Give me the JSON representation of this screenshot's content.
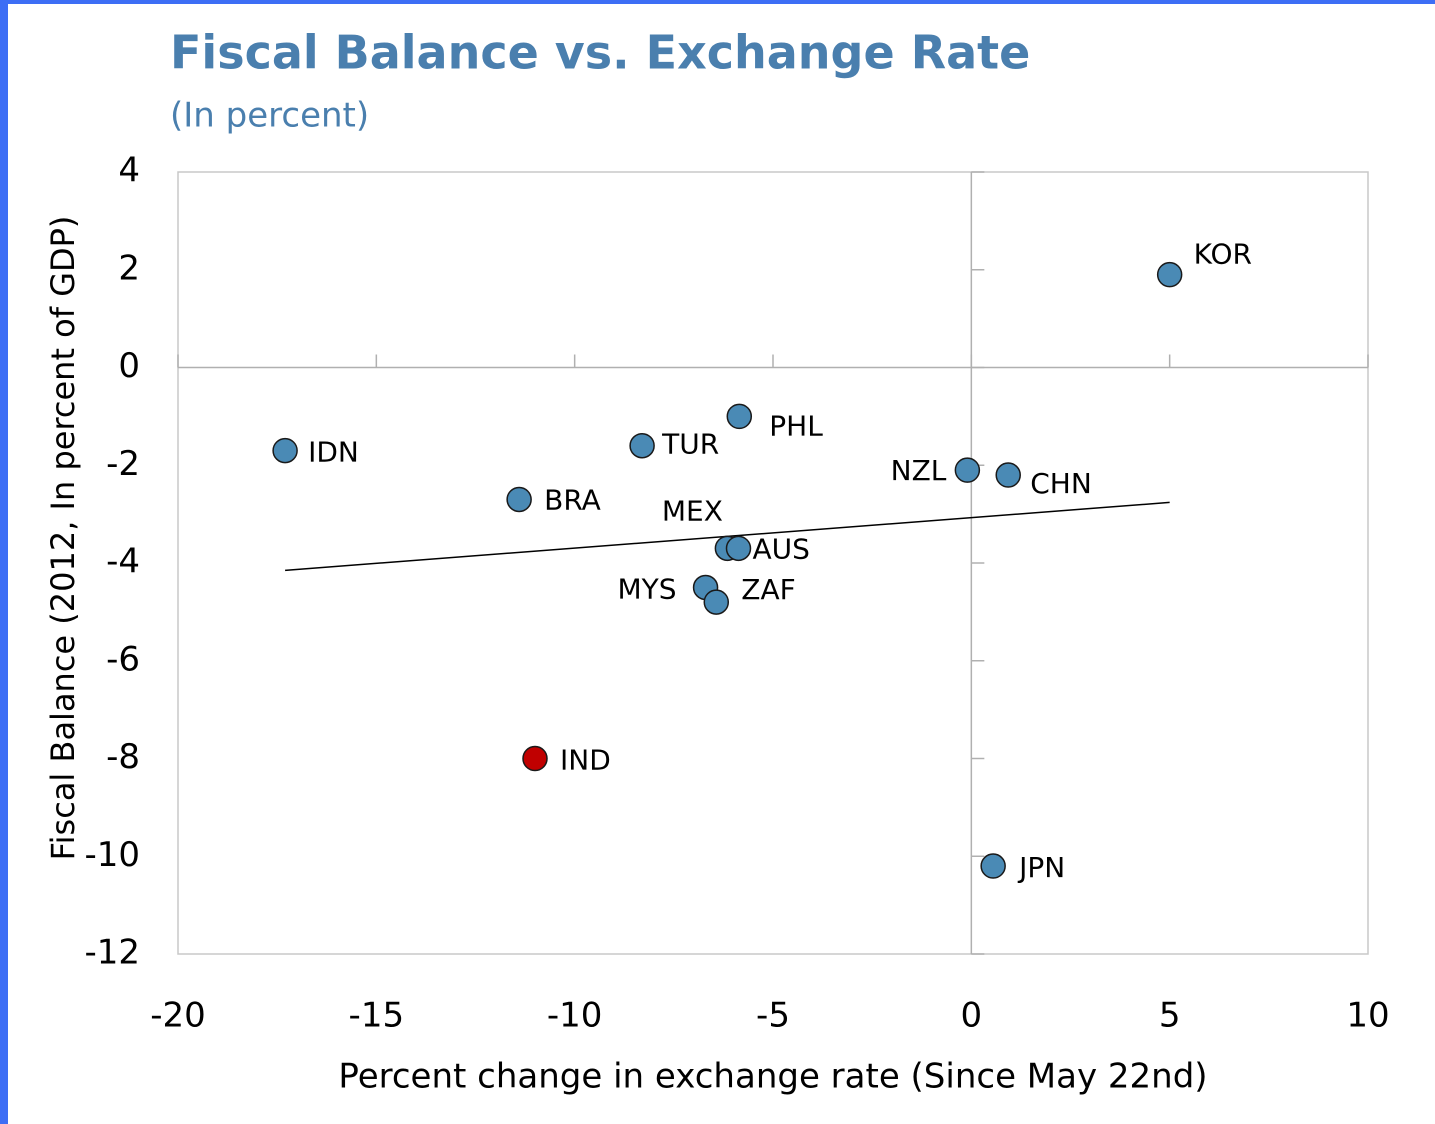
{
  "chart_data": {
    "type": "scatter",
    "title": "Fiscal Balance vs. Exchange Rate",
    "subtitle": "(In percent)",
    "x_label": "Percent change in exchange rate (Since May 22nd)",
    "y_label": "Fiscal Balance (2012, In percent of GDP)",
    "labels": [
      "IDN",
      "BRA",
      "TUR",
      "PHL",
      "NZL",
      "CHN",
      "KOR",
      "MEX",
      "AUS",
      "MYS",
      "ZAF",
      "IND",
      "JPN"
    ],
    "x": [
      -17.3,
      -11.4,
      -8.3,
      -5.85,
      -0.1,
      0.93,
      5.0,
      -6.15,
      -5.87,
      -6.7,
      -6.43,
      -11.0,
      0.55
    ],
    "y": [
      -1.7,
      -2.7,
      -1.6,
      -1.0,
      -2.1,
      -2.2,
      1.9,
      -3.7,
      -3.7,
      -4.5,
      -4.8,
      -8.0,
      -10.2
    ],
    "colors": [
      "#4a8ab5",
      "#4a8ab5",
      "#4a8ab5",
      "#4a8ab5",
      "#4a8ab5",
      "#4a8ab5",
      "#4a8ab5",
      "#4a8ab5",
      "#4a8ab5",
      "#4a8ab5",
      "#4a8ab5",
      "#c00000",
      "#4a8ab5"
    ],
    "trendline": {
      "x": [
        -17.3,
        5.0
      ],
      "y": [
        -4.15,
        -2.76
      ]
    },
    "xlim": [
      -20,
      10
    ],
    "xticks": [
      -20,
      -15,
      -10,
      -5,
      0,
      5,
      10
    ],
    "ylim": [
      -12,
      4
    ],
    "yticks": [
      -12,
      -10,
      -8,
      -6,
      -4,
      -2,
      0,
      2,
      4
    ]
  }
}
